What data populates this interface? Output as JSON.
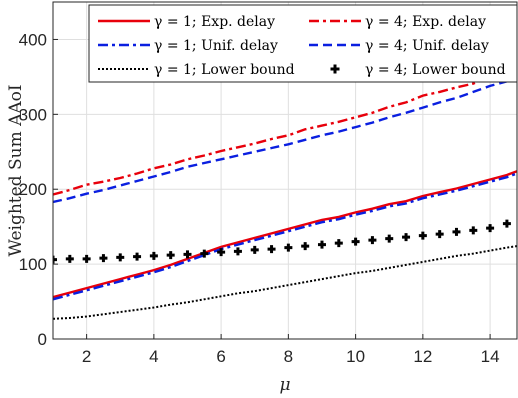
{
  "chart_data": {
    "type": "line",
    "title": "",
    "xlabel": "μ",
    "ylabel": "Weighted Sum AAoI",
    "xlim": [
      1,
      14.8
    ],
    "ylim": [
      0,
      450
    ],
    "xticks": [
      2,
      4,
      6,
      8,
      10,
      12,
      14
    ],
    "yticks": [
      0,
      100,
      200,
      300,
      400
    ],
    "grid": true,
    "legend_position": "top",
    "series": [
      {
        "name": "γ = 1; Exp. delay",
        "color": "#e8000b",
        "style": "solid",
        "x": [
          1.0,
          1.5,
          2.0,
          2.5,
          3.0,
          3.5,
          4.0,
          4.5,
          5.0,
          5.5,
          6.0,
          6.5,
          7.0,
          7.5,
          8.0,
          8.5,
          9.0,
          9.5,
          10.0,
          10.5,
          11.0,
          11.5,
          12.0,
          12.5,
          13.0,
          13.5,
          14.0,
          14.5,
          14.8
        ],
        "y": [
          56,
          62,
          68,
          74,
          80,
          86,
          92,
          99,
          107,
          115,
          123,
          129,
          135,
          141,
          147,
          153,
          159,
          163,
          169,
          174,
          180,
          184,
          191,
          196,
          201,
          207,
          213,
          219,
          224
        ]
      },
      {
        "name": "γ = 4; Exp. delay",
        "color": "#e8000b",
        "style": "dashdot",
        "x": [
          1.0,
          1.5,
          2.0,
          2.5,
          3.0,
          3.5,
          4.0,
          4.5,
          5.0,
          5.5,
          6.0,
          6.5,
          7.0,
          7.5,
          8.0,
          8.5,
          9.0,
          9.5,
          10.0,
          10.5,
          11.0,
          11.5,
          12.0,
          12.5,
          13.0,
          13.5,
          14.0,
          14.5,
          14.8
        ],
        "y": [
          193,
          199,
          206,
          210,
          215,
          221,
          228,
          233,
          240,
          245,
          251,
          256,
          261,
          267,
          272,
          280,
          285,
          290,
          296,
          302,
          310,
          316,
          325,
          330,
          336,
          341,
          350,
          356,
          362
        ]
      },
      {
        "name": "γ = 1; Unif. delay",
        "color": "#0a1fe0",
        "style": "dashdot",
        "x": [
          1.0,
          1.5,
          2.0,
          2.5,
          3.0,
          3.5,
          4.0,
          4.5,
          5.0,
          5.5,
          6.0,
          6.5,
          7.0,
          7.5,
          8.0,
          8.5,
          9.0,
          9.5,
          10.0,
          10.5,
          11.0,
          11.5,
          12.0,
          12.5,
          13.0,
          13.5,
          14.0,
          14.5,
          14.8
        ],
        "y": [
          53,
          59,
          65,
          71,
          77,
          83,
          89,
          96,
          104,
          112,
          120,
          126,
          132,
          138,
          144,
          150,
          156,
          160,
          166,
          171,
          177,
          181,
          188,
          193,
          198,
          204,
          210,
          216,
          221
        ]
      },
      {
        "name": "γ = 4; Unif. delay",
        "color": "#0a1fe0",
        "style": "dashed",
        "x": [
          1.0,
          1.5,
          2.0,
          2.5,
          3.0,
          3.5,
          4.0,
          4.5,
          5.0,
          5.5,
          6.0,
          6.5,
          7.0,
          7.5,
          8.0,
          8.5,
          9.0,
          9.5,
          10.0,
          10.5,
          11.0,
          11.5,
          12.0,
          12.5,
          13.0,
          13.5,
          14.0,
          14.5,
          14.8
        ],
        "y": [
          183,
          188,
          194,
          199,
          205,
          211,
          217,
          223,
          230,
          235,
          240,
          245,
          250,
          255,
          260,
          266,
          272,
          277,
          283,
          289,
          296,
          302,
          309,
          316,
          322,
          330,
          338,
          344,
          350
        ]
      },
      {
        "name": "γ = 1; Lower bound",
        "color": "#000000",
        "style": "dotted",
        "x": [
          1.0,
          1.5,
          2.0,
          2.5,
          3.0,
          3.5,
          4.0,
          4.5,
          5.0,
          5.5,
          6.0,
          6.5,
          7.0,
          7.5,
          8.0,
          8.5,
          9.0,
          9.5,
          10.0,
          10.5,
          11.0,
          11.5,
          12.0,
          12.5,
          13.0,
          13.5,
          14.0,
          14.5,
          14.8
        ],
        "y": [
          27,
          28,
          30,
          33,
          36,
          39,
          42,
          46,
          49,
          53,
          57,
          61,
          64,
          68,
          72,
          76,
          80,
          84,
          88,
          91,
          95,
          99,
          103,
          107,
          111,
          114,
          118,
          122,
          124
        ]
      },
      {
        "name": "γ = 4; Lower bound",
        "color": "#000000",
        "style": "marker-plus",
        "x": [
          1.0,
          1.5,
          2.0,
          2.5,
          3.0,
          3.5,
          4.0,
          4.5,
          5.0,
          5.5,
          6.0,
          6.5,
          7.0,
          7.5,
          8.0,
          8.5,
          9.0,
          9.5,
          10.0,
          10.5,
          11.0,
          11.5,
          12.0,
          12.5,
          13.0,
          13.5,
          14.0,
          14.5
        ],
        "y": [
          106,
          107,
          107,
          108,
          109,
          110,
          111,
          112,
          113,
          114,
          116,
          117,
          119,
          120,
          122,
          124,
          126,
          128,
          130,
          132,
          134,
          136,
          138,
          140,
          143,
          145,
          148,
          154
        ]
      }
    ]
  }
}
